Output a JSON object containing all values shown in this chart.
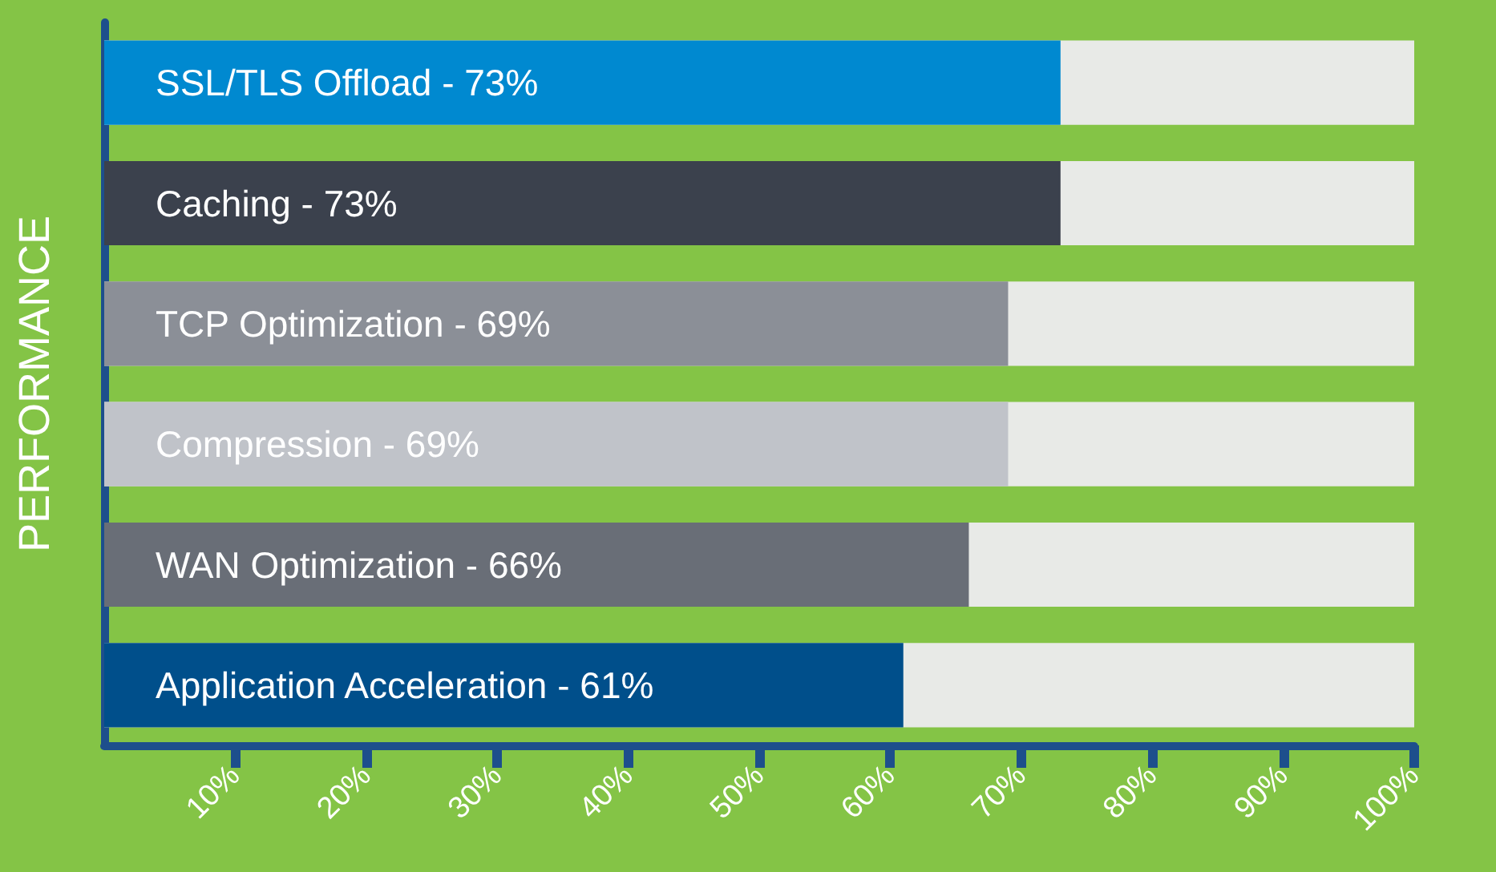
{
  "chart_data": {
    "type": "bar",
    "orientation": "horizontal",
    "ylabel": "PERFORMANCE",
    "categories": [
      "SSL/TLS Offload - 73%",
      "Caching - 73%",
      "TCP Optimization - 69%",
      "Compression - 69%",
      "WAN Optimization - 66%",
      "Application Acceleration - 61%"
    ],
    "values": [
      73,
      73,
      69,
      69,
      66,
      61
    ],
    "colors": [
      "#0089d0",
      "#3b414d",
      "#8b8f97",
      "#c0c3c9",
      "#696e77",
      "#004f8b"
    ],
    "xlim": [
      0,
      100
    ],
    "xticks": [
      {
        "value": 10,
        "label": "10%"
      },
      {
        "value": 20,
        "label": "20%"
      },
      {
        "value": 30,
        "label": "30%"
      },
      {
        "value": 40,
        "label": "40%"
      },
      {
        "value": 50,
        "label": "50%"
      },
      {
        "value": 60,
        "label": "60%"
      },
      {
        "value": 70,
        "label": "70%"
      },
      {
        "value": 80,
        "label": "80%"
      },
      {
        "value": 90,
        "label": "90%"
      },
      {
        "value": 100,
        "label": "100%"
      }
    ],
    "tick_labels": "x",
    "grid": false
  }
}
